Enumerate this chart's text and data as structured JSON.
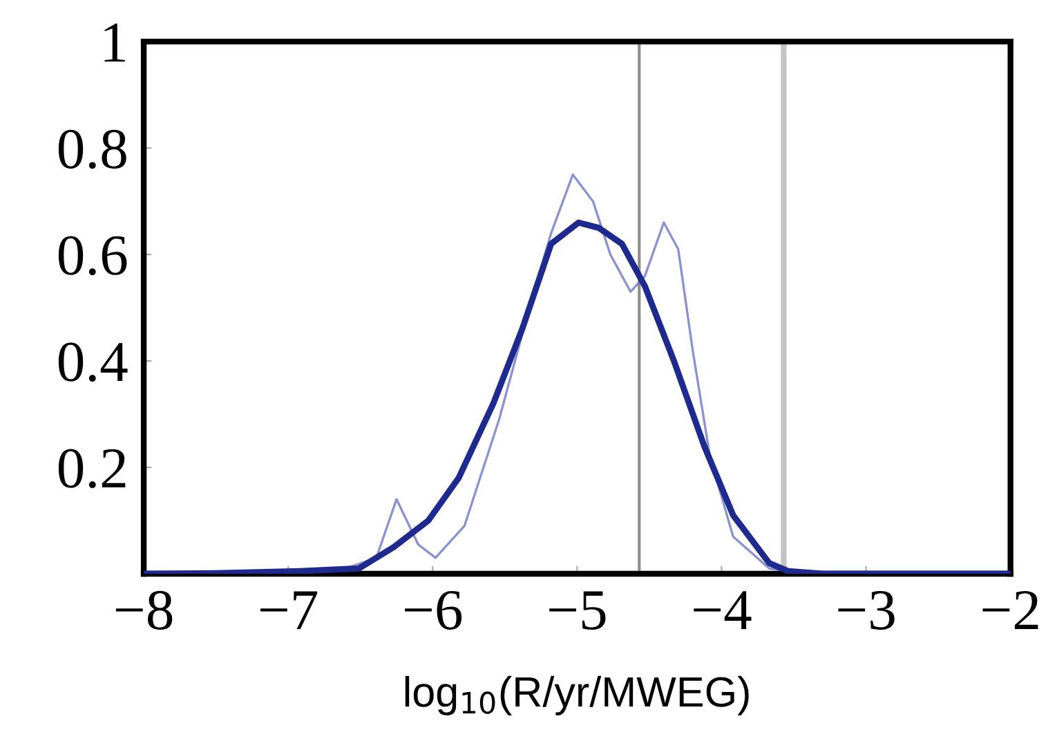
{
  "chart_data": {
    "type": "line",
    "xlabel": "log$_{10}$(R/yr/MWEG)",
    "xlim": [
      -8,
      -2
    ],
    "ylim": [
      0,
      1
    ],
    "xticks": [
      {
        "value": -8,
        "label": "−8"
      },
      {
        "value": -7,
        "label": "−7"
      },
      {
        "value": -6,
        "label": "−6"
      },
      {
        "value": -5,
        "label": "−5"
      },
      {
        "value": -4,
        "label": "−4"
      },
      {
        "value": -3,
        "label": "−3"
      },
      {
        "value": -2,
        "label": "−2"
      }
    ],
    "yticks": [
      0.2,
      0.4,
      0.6,
      0.8,
      1
    ],
    "grid": false,
    "legend": false,
    "marker": "none",
    "line_style": "solid",
    "series": [
      {
        "color": "#6e77c4",
        "x": [
          -8,
          -7,
          -6.6,
          -6.39,
          -6.25,
          -6.1,
          -5.98,
          -5.78,
          -5.54,
          -5.3,
          -5.18,
          -5.03,
          -4.89,
          -4.77,
          -4.63,
          -4.53,
          -4.4,
          -4.3,
          -4.2,
          -4.08,
          -3.92,
          -3.67,
          -3.4,
          -2
        ],
        "values": [
          0,
          0.003,
          0.01,
          0.03,
          0.14,
          0.055,
          0.03,
          0.09,
          0.29,
          0.53,
          0.64,
          0.75,
          0.7,
          0.6,
          0.53,
          0.56,
          0.66,
          0.61,
          0.42,
          0.22,
          0.07,
          0.01,
          0,
          0
        ]
      },
      {
        "color": "#1f2a8f",
        "x": [
          -8,
          -7.5,
          -6.92,
          -6.51,
          -6.27,
          -6.03,
          -5.82,
          -5.58,
          -5.38,
          -5.18,
          -4.99,
          -4.85,
          -4.69,
          -4.53,
          -4.33,
          -4.12,
          -3.92,
          -3.67,
          -3.54,
          -3.3,
          -2
        ],
        "values": [
          0,
          0.001,
          0.005,
          0.01,
          0.05,
          0.1,
          0.18,
          0.32,
          0.46,
          0.62,
          0.66,
          0.65,
          0.62,
          0.54,
          0.4,
          0.24,
          0.11,
          0.02,
          0.005,
          0,
          0
        ]
      }
    ],
    "ref_lines": [
      {
        "axis": "x",
        "value": -4.57,
        "color": "#8c8c8c"
      },
      {
        "axis": "x",
        "value": -3.57,
        "color": "#c4c4c4"
      }
    ]
  }
}
